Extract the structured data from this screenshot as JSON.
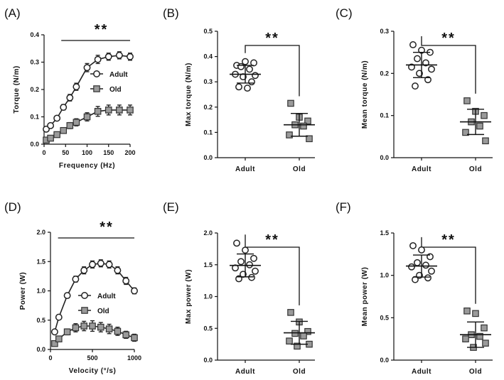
{
  "chart_data": [
    {
      "id": "A",
      "type": "line",
      "panel_label": "(A)",
      "xlabel": "Frequency (Hz)",
      "ylabel": "Torque (N/m)",
      "xlim": [
        0,
        200
      ],
      "ylim": [
        0,
        0.4
      ],
      "xticks": [
        0,
        50,
        100,
        150,
        200
      ],
      "xtick_labels": [
        "0",
        "50",
        "100",
        "150",
        "200"
      ],
      "yticks": [
        0,
        0.1,
        0.2,
        0.3,
        0.4
      ],
      "ytick_labels": [
        "0.0",
        "0.1",
        "0.2",
        "0.3",
        "0.4"
      ],
      "significance": "**",
      "series": [
        {
          "name": "Adult",
          "marker": "circle",
          "x": [
            5,
            15,
            30,
            45,
            60,
            75,
            100,
            125,
            150,
            175,
            200
          ],
          "y": [
            0.055,
            0.068,
            0.095,
            0.135,
            0.17,
            0.21,
            0.28,
            0.31,
            0.32,
            0.325,
            0.32
          ],
          "err": [
            0.005,
            0.006,
            0.008,
            0.01,
            0.012,
            0.013,
            0.015,
            0.015,
            0.013,
            0.013,
            0.013
          ]
        },
        {
          "name": "Old",
          "marker": "square",
          "x": [
            5,
            15,
            30,
            45,
            60,
            75,
            100,
            125,
            150,
            175,
            200
          ],
          "y": [
            0.015,
            0.022,
            0.035,
            0.05,
            0.068,
            0.08,
            0.1,
            0.12,
            0.125,
            0.125,
            0.125
          ],
          "err": [
            0.004,
            0.005,
            0.007,
            0.009,
            0.011,
            0.013,
            0.015,
            0.018,
            0.018,
            0.018,
            0.018
          ]
        }
      ],
      "legend": [
        "Adult",
        "Old"
      ]
    },
    {
      "id": "B",
      "type": "scatter",
      "panel_label": "(B)",
      "ylabel": "Max torque (N/m)",
      "categories": [
        "Adult",
        "Old"
      ],
      "ylim": [
        0,
        0.5
      ],
      "yticks": [
        0,
        0.1,
        0.2,
        0.3,
        0.4,
        0.5
      ],
      "ytick_labels": [
        "0.0",
        "0.1",
        "0.2",
        "0.3",
        "0.4",
        "0.5"
      ],
      "significance": "**",
      "groups": [
        {
          "name": "Adult",
          "marker": "circle",
          "mean": 0.33,
          "sd": 0.035,
          "values": [
            0.365,
            0.38,
            0.375,
            0.36,
            0.35,
            0.33,
            0.325,
            0.32,
            0.3,
            0.28,
            0.275
          ]
        },
        {
          "name": "Old",
          "marker": "square",
          "mean": 0.13,
          "sd": 0.045,
          "values": [
            0.215,
            0.16,
            0.145,
            0.13,
            0.125,
            0.09,
            0.075
          ]
        }
      ]
    },
    {
      "id": "C",
      "type": "scatter",
      "panel_label": "(C)",
      "ylabel": "Mean torque (N/m)",
      "categories": [
        "Adult",
        "Old"
      ],
      "ylim": [
        0,
        0.3
      ],
      "yticks": [
        0,
        0.1,
        0.2,
        0.3
      ],
      "ytick_labels": [
        "0.0",
        "0.1",
        "0.2",
        "0.3"
      ],
      "significance": "**",
      "groups": [
        {
          "name": "Adult",
          "marker": "circle",
          "mean": 0.22,
          "sd": 0.03,
          "values": [
            0.268,
            0.255,
            0.25,
            0.235,
            0.225,
            0.215,
            0.21,
            0.2,
            0.185,
            0.17
          ]
        },
        {
          "name": "Old",
          "marker": "square",
          "mean": 0.085,
          "sd": 0.03,
          "values": [
            0.135,
            0.11,
            0.1,
            0.085,
            0.075,
            0.06,
            0.04
          ]
        }
      ]
    },
    {
      "id": "D",
      "type": "line",
      "panel_label": "(D)",
      "xlabel": "Velocity (°/s)",
      "ylabel": "Power (W)",
      "xlim": [
        0,
        1000
      ],
      "ylim": [
        0,
        2.0
      ],
      "xticks": [
        0,
        500,
        1000
      ],
      "xtick_labels": [
        "0",
        "500",
        "1000"
      ],
      "yticks": [
        0,
        0.5,
        1.0,
        1.5,
        2.0
      ],
      "ytick_labels": [
        "0.0",
        "0.5",
        "1.0",
        "1.5",
        "2.0"
      ],
      "significance": "**",
      "series": [
        {
          "name": "Adult",
          "marker": "circle",
          "x": [
            50,
            100,
            200,
            300,
            400,
            500,
            600,
            700,
            800,
            900,
            1000
          ],
          "y": [
            0.3,
            0.55,
            0.92,
            1.2,
            1.35,
            1.45,
            1.47,
            1.45,
            1.35,
            1.17,
            1.0
          ],
          "err": [
            0.02,
            0.03,
            0.04,
            0.05,
            0.06,
            0.06,
            0.06,
            0.06,
            0.06,
            0.06,
            0.05
          ]
        },
        {
          "name": "Old",
          "marker": "square",
          "x": [
            50,
            100,
            200,
            300,
            400,
            500,
            600,
            700,
            800,
            900,
            1000
          ],
          "y": [
            0.1,
            0.18,
            0.3,
            0.37,
            0.4,
            0.4,
            0.38,
            0.35,
            0.31,
            0.25,
            0.2
          ],
          "err": [
            0.02,
            0.03,
            0.05,
            0.07,
            0.08,
            0.09,
            0.08,
            0.08,
            0.07,
            0.06,
            0.06
          ]
        }
      ],
      "legend": [
        "Adult",
        "Old"
      ]
    },
    {
      "id": "E",
      "type": "scatter",
      "panel_label": "(E)",
      "ylabel": "Max power (W)",
      "categories": [
        "Adult",
        "Old"
      ],
      "ylim": [
        0,
        2.0
      ],
      "yticks": [
        0,
        0.5,
        1.0,
        1.5,
        2.0
      ],
      "ytick_labels": [
        "0.0",
        "0.5",
        "1.0",
        "1.5",
        "2.0"
      ],
      "significance": "**",
      "groups": [
        {
          "name": "Adult",
          "marker": "circle",
          "mean": 1.49,
          "sd": 0.18,
          "values": [
            1.84,
            1.73,
            1.6,
            1.55,
            1.5,
            1.45,
            1.4,
            1.35,
            1.3,
            1.28
          ]
        },
        {
          "name": "Old",
          "marker": "square",
          "mean": 0.43,
          "sd": 0.18,
          "values": [
            0.75,
            0.6,
            0.45,
            0.42,
            0.38,
            0.3,
            0.25,
            0.22
          ]
        }
      ]
    },
    {
      "id": "F",
      "type": "scatter",
      "panel_label": "(F)",
      "ylabel": "Mean power (W)",
      "categories": [
        "Adult",
        "Old"
      ],
      "ylim": [
        0,
        1.5
      ],
      "yticks": [
        0,
        0.5,
        1.0,
        1.5
      ],
      "ytick_labels": [
        "0.0",
        "0.5",
        "1.0",
        "1.5"
      ],
      "significance": "**",
      "groups": [
        {
          "name": "Adult",
          "marker": "circle",
          "mean": 1.11,
          "sd": 0.13,
          "values": [
            1.35,
            1.3,
            1.22,
            1.15,
            1.12,
            1.1,
            1.05,
            1.0,
            0.97,
            0.95
          ]
        },
        {
          "name": "Old",
          "marker": "square",
          "mean": 0.3,
          "sd": 0.15,
          "values": [
            0.58,
            0.55,
            0.38,
            0.3,
            0.28,
            0.25,
            0.2,
            0.15
          ]
        }
      ]
    }
  ]
}
